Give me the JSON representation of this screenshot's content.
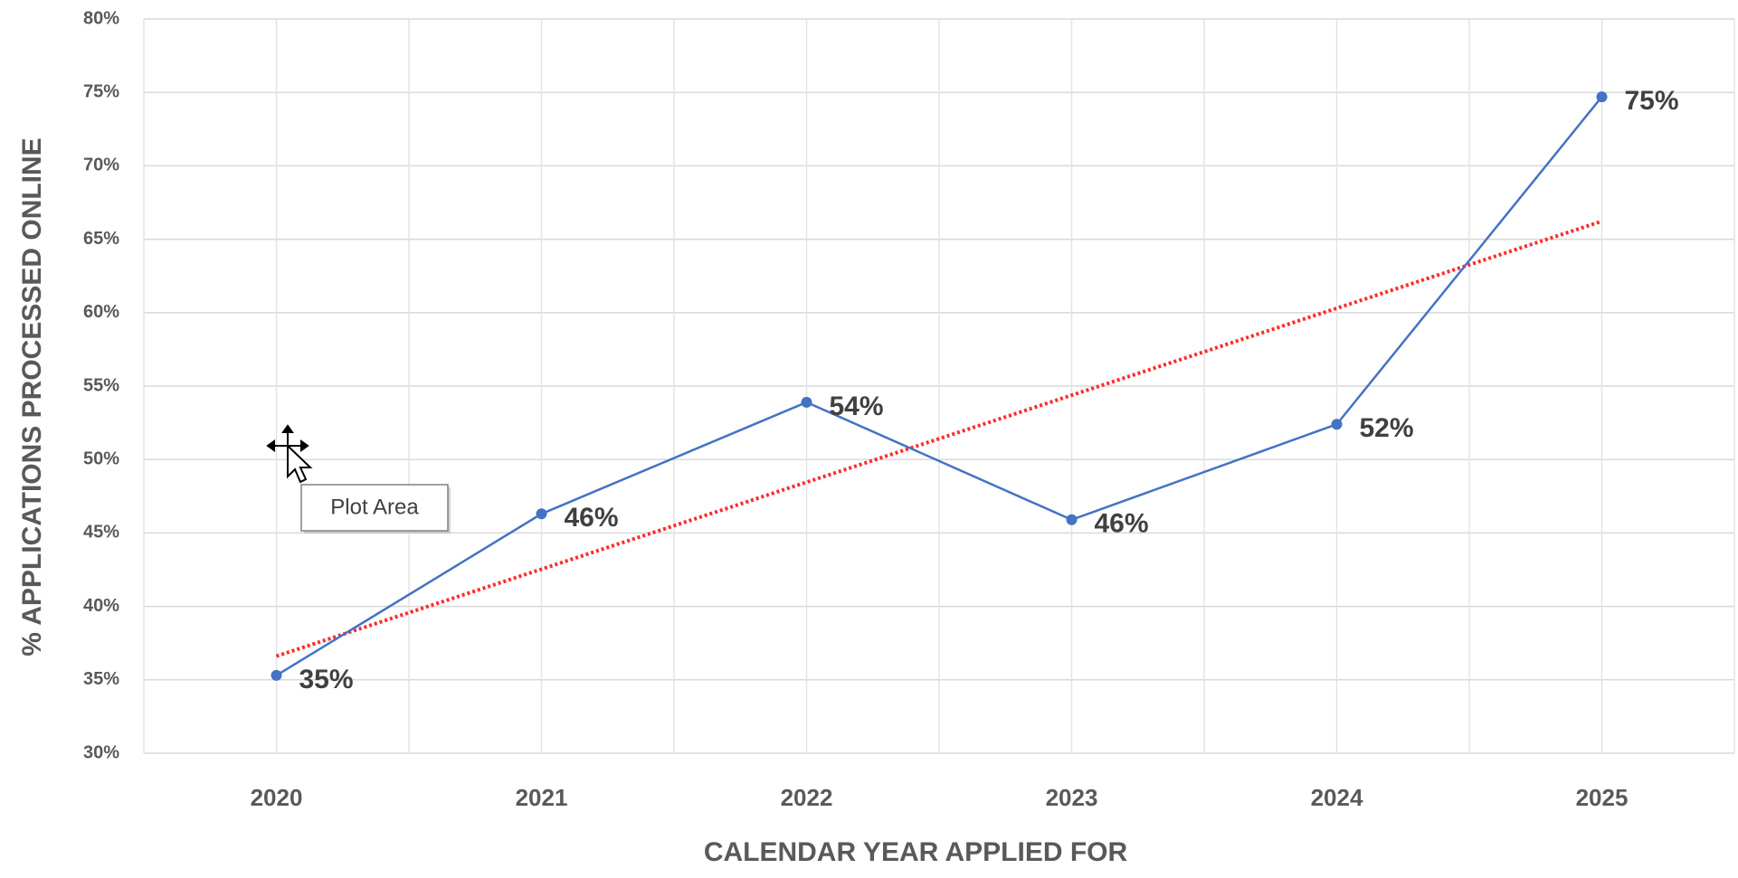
{
  "chart_data": {
    "type": "line",
    "categories": [
      "2020",
      "2021",
      "2022",
      "2023",
      "2024",
      "2025"
    ],
    "series": [
      {
        "name": "% Applications Processed Online",
        "color": "#4472c4",
        "values": [
          35.3,
          46.3,
          53.9,
          45.9,
          52.4,
          74.7
        ],
        "value_labels": [
          "35%",
          "46%",
          "54%",
          "46%",
          "52%",
          "75%"
        ]
      }
    ],
    "ylim": [
      30,
      80
    ],
    "yticks": [
      {
        "value": 30,
        "label": "30%"
      },
      {
        "value": 35,
        "label": "35%"
      },
      {
        "value": 40,
        "label": "40%"
      },
      {
        "value": 45,
        "label": "45%"
      },
      {
        "value": 50,
        "label": "50%"
      },
      {
        "value": 55,
        "label": "55%"
      },
      {
        "value": 60,
        "label": "60%"
      },
      {
        "value": 65,
        "label": "65%"
      },
      {
        "value": 70,
        "label": "70%"
      },
      {
        "value": 75,
        "label": "75%"
      },
      {
        "value": 80,
        "label": "80%"
      }
    ],
    "xlabel": "CALENDAR YEAR APPLIED FOR",
    "ylabel": "% APPLICATIONS PROCESSED ONLINE",
    "grid": true,
    "trendline": {
      "type": "linear",
      "color": "#ff2a2a"
    }
  },
  "tooltip": "Plot Area"
}
